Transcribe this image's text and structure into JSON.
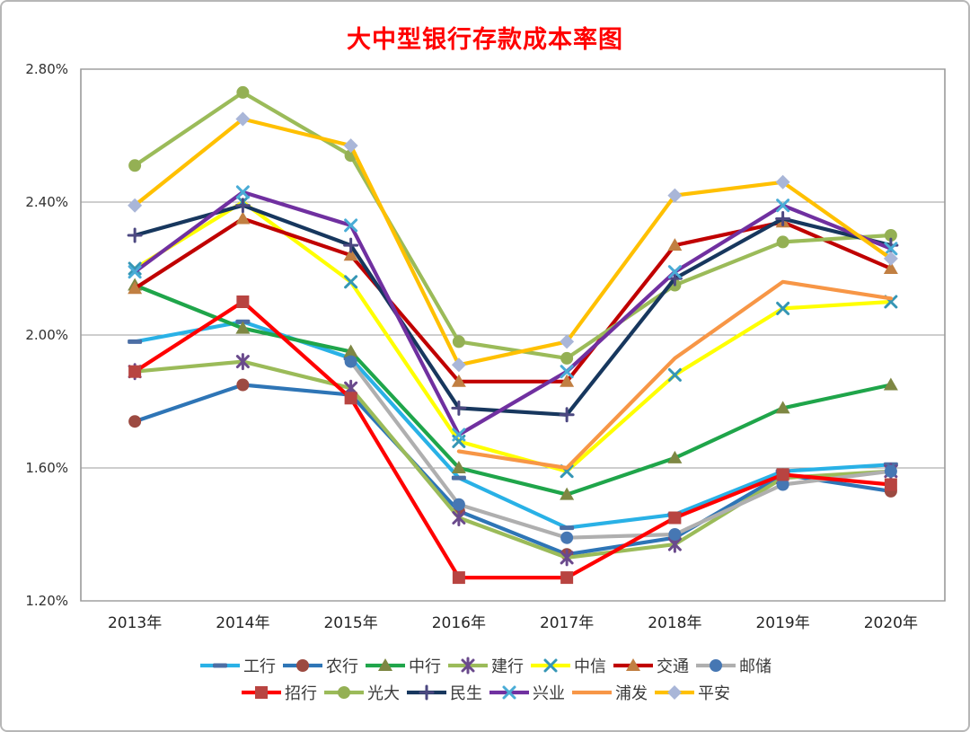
{
  "title": {
    "text": "大中型银行存款成本率图",
    "color": "#FF0000"
  },
  "chart_data": {
    "type": "line",
    "categories": [
      "2013年",
      "2014年",
      "2015年",
      "2016年",
      "2017年",
      "2018年",
      "2019年",
      "2020年"
    ],
    "y_axis": {
      "tick_labels": [
        "2.80%",
        "2.40%",
        "2.00%",
        "1.60%",
        "1.20%"
      ],
      "tick_values": [
        2.8,
        2.4,
        2.0,
        1.6,
        1.2
      ],
      "min": 1.2,
      "max": 2.8
    },
    "grid": true,
    "legend_position": "bottom",
    "legend_row_split": 7,
    "series": [
      {
        "key": "icbc",
        "name": "工行",
        "color": "#29B1E6",
        "marker": "dash",
        "marker_color": "#4C6FA5",
        "values": [
          1.98,
          2.04,
          1.93,
          1.57,
          1.42,
          1.46,
          1.59,
          1.61
        ]
      },
      {
        "key": "abc",
        "name": "农行",
        "color": "#2E75B6",
        "marker": "circle",
        "marker_color": "#9C4A41",
        "values": [
          1.74,
          1.85,
          1.82,
          1.47,
          1.34,
          1.39,
          1.58,
          1.53
        ]
      },
      {
        "key": "boc",
        "name": "中行",
        "color": "#1FA54A",
        "marker": "triangle",
        "marker_color": "#7E8743",
        "values": [
          2.15,
          2.02,
          1.95,
          1.6,
          1.52,
          1.63,
          1.78,
          1.85
        ]
      },
      {
        "key": "ccb",
        "name": "建行",
        "color": "#9BBB59",
        "marker": "asterisk",
        "marker_color": "#6A4A8C",
        "values": [
          1.89,
          1.92,
          1.84,
          1.45,
          1.33,
          1.37,
          1.57,
          1.59
        ]
      },
      {
        "key": "citic",
        "name": "中信",
        "color": "#FFFF00",
        "marker": "x",
        "marker_color": "#3596B5",
        "values": [
          2.2,
          2.4,
          2.16,
          1.68,
          1.59,
          1.88,
          2.08,
          2.1
        ]
      },
      {
        "key": "bocom",
        "name": "交通",
        "color": "#C00000",
        "marker": "triangle",
        "marker_color": "#C17F42",
        "values": [
          2.14,
          2.35,
          2.24,
          1.86,
          1.86,
          2.27,
          2.34,
          2.2
        ]
      },
      {
        "key": "psbc",
        "name": "邮储",
        "color": "#AFAFAF",
        "marker": "circle",
        "marker_color": "#4677B3",
        "values": [
          null,
          null,
          1.92,
          1.49,
          1.39,
          1.4,
          1.55,
          1.59
        ]
      },
      {
        "key": "cmb",
        "name": "招行",
        "color": "#FF0000",
        "marker": "square",
        "marker_color": "#B84441",
        "values": [
          1.89,
          2.1,
          1.81,
          1.27,
          1.27,
          1.45,
          1.58,
          1.55
        ]
      },
      {
        "key": "ceb",
        "name": "光大",
        "color": "#9BBB59",
        "marker": "circle",
        "marker_color": "#94B054",
        "values": [
          2.51,
          2.73,
          2.54,
          1.98,
          1.93,
          2.15,
          2.28,
          2.3
        ]
      },
      {
        "key": "cmbc",
        "name": "民生",
        "color": "#17375E",
        "marker": "plus",
        "marker_color": "#4C4881",
        "values": [
          2.3,
          2.39,
          2.27,
          1.78,
          1.76,
          2.17,
          2.35,
          2.27
        ]
      },
      {
        "key": "cib",
        "name": "兴业",
        "color": "#7030A0",
        "marker": "x",
        "marker_color": "#49ACD6",
        "values": [
          2.19,
          2.43,
          2.33,
          1.7,
          1.89,
          2.19,
          2.39,
          2.26
        ]
      },
      {
        "key": "spdb",
        "name": "浦发",
        "color": "#F79646",
        "marker": "none",
        "marker_color": "#F79646",
        "values": [
          null,
          null,
          null,
          1.65,
          1.6,
          1.93,
          2.16,
          2.11
        ]
      },
      {
        "key": "pingan",
        "name": "平安",
        "color": "#FFC000",
        "marker": "diamond",
        "marker_color": "#A9B6D8",
        "values": [
          2.39,
          2.65,
          2.57,
          1.91,
          1.98,
          2.42,
          2.46,
          2.23
        ]
      }
    ]
  }
}
